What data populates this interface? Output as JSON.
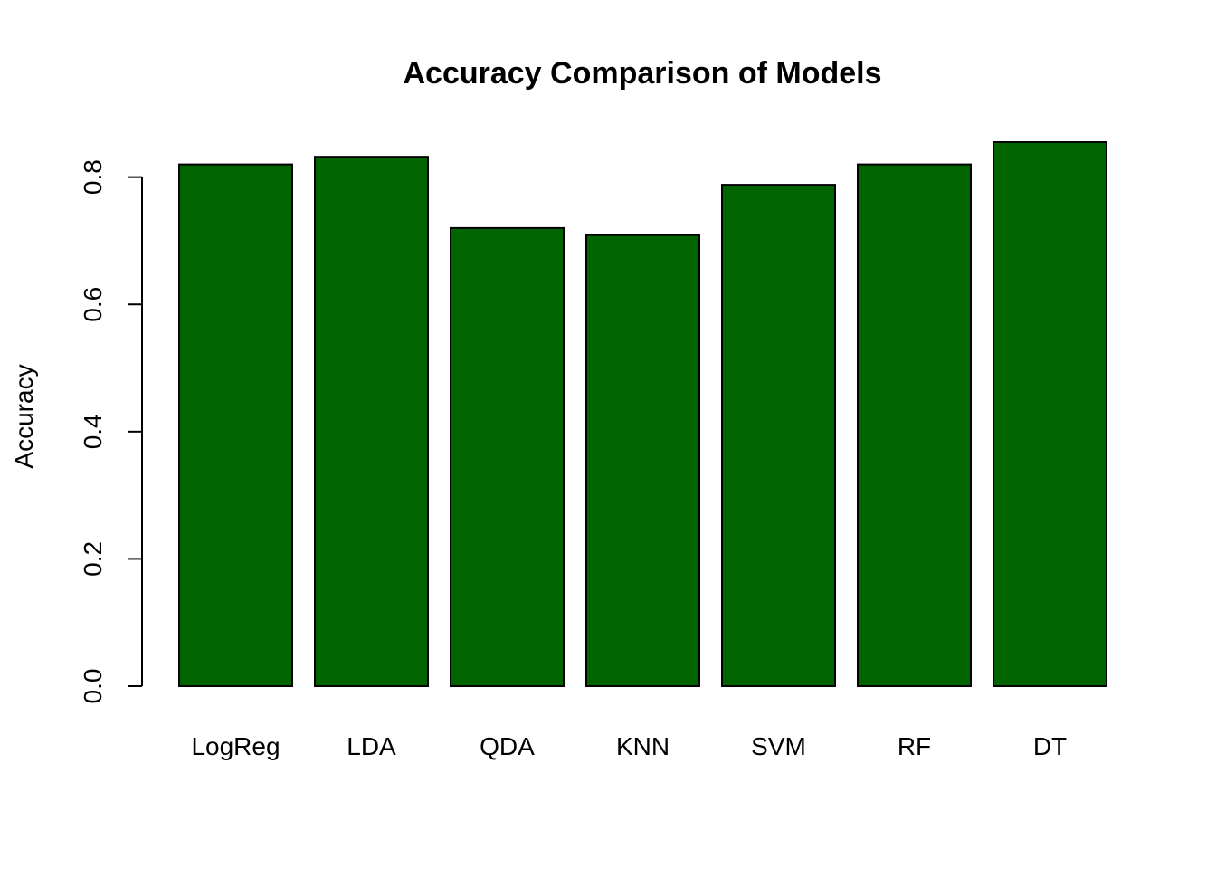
{
  "chart_data": {
    "type": "bar",
    "title": "Accuracy Comparison of Models",
    "xlabel": "",
    "ylabel": "Accuracy",
    "categories": [
      "LogReg",
      "LDA",
      "QDA",
      "KNN",
      "SVM",
      "RF",
      "DT"
    ],
    "values": [
      0.82,
      0.832,
      0.72,
      0.709,
      0.788,
      0.82,
      0.855
    ],
    "ylim": [
      0,
      0.855
    ],
    "yticks": [
      "0.0",
      "0.2",
      "0.4",
      "0.6",
      "0.8"
    ],
    "grid": false,
    "legend": "none",
    "bar_color": "#006400"
  }
}
